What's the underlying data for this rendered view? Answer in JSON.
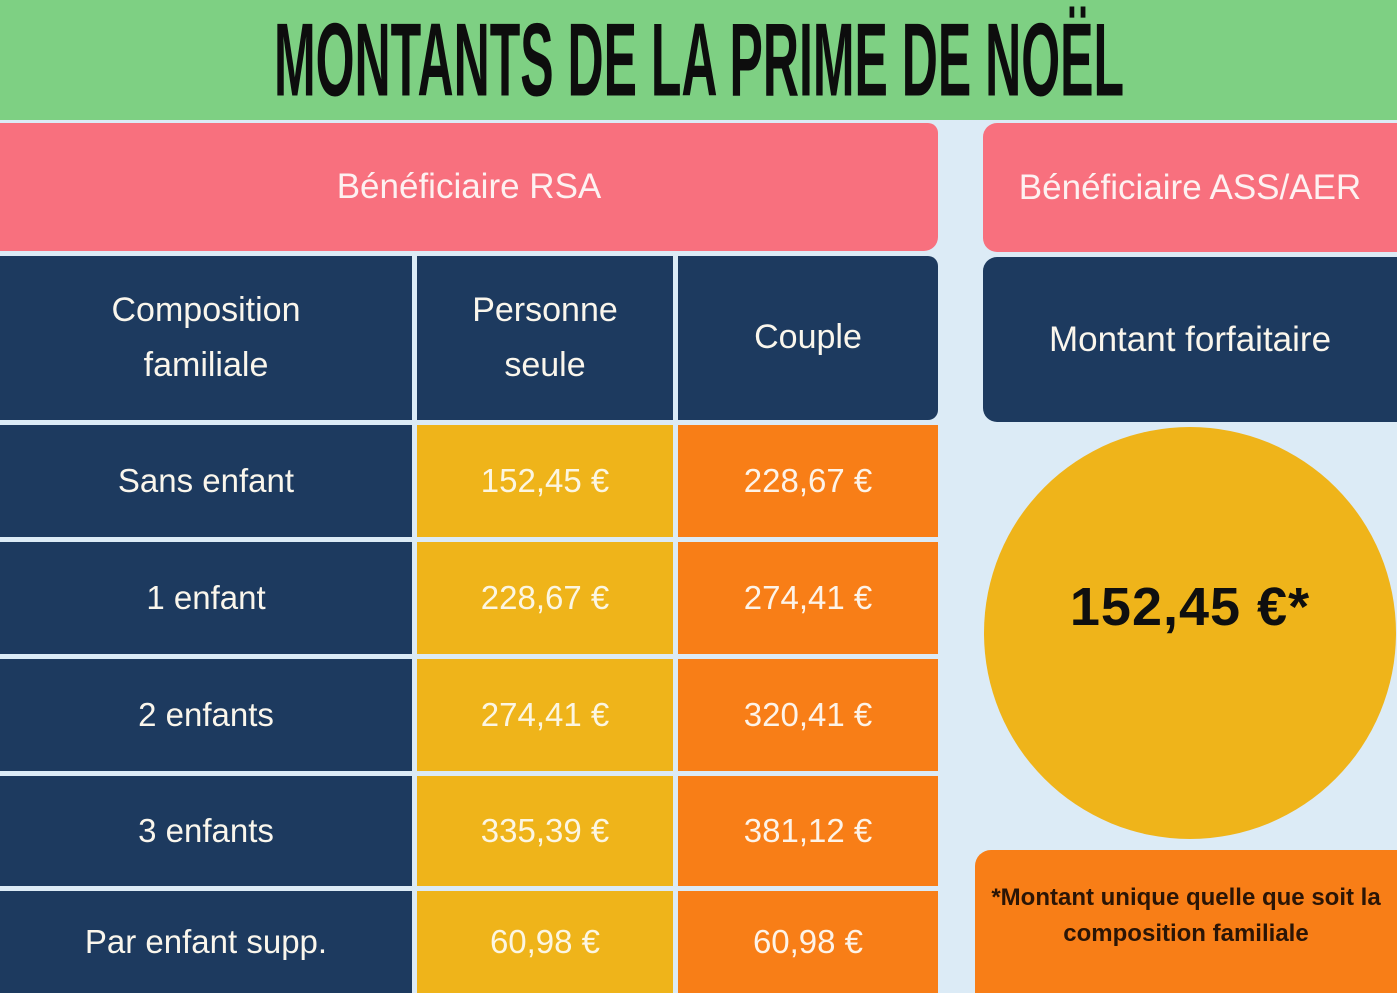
{
  "title": "MONTANTS DE LA PRIME DE NOËL",
  "colors": {
    "green_header": "#7ed083",
    "pink_banner": "#f8707e",
    "navy": "#1d3a5f",
    "yellow": "#efb41a",
    "orange": "#f87e17",
    "background_light_blue": "#dcebf6",
    "title_text": "#0d0d0d",
    "cell_text": "#faf6ec",
    "footnote_text": "#2b1506"
  },
  "rsa": {
    "header": "Bénéficiaire RSA",
    "columns": [
      "Composition familiale",
      "Personne seule",
      "Couple"
    ],
    "rows": [
      {
        "label": "Sans enfant",
        "single": "152,45 €",
        "couple": "228,67 €"
      },
      {
        "label": "1 enfant",
        "single": "228,67 €",
        "couple": "274,41 €"
      },
      {
        "label": "2 enfants",
        "single": "274,41 €",
        "couple": "320,41 €"
      },
      {
        "label": "3 enfants",
        "single": "335,39 €",
        "couple": "381,12 €"
      },
      {
        "label": "Par enfant supp.",
        "single": "60,98 €",
        "couple": "60,98 €"
      }
    ]
  },
  "ass": {
    "header": "Bénéficiaire ASS/AER",
    "subheader": "Montant forfaitaire",
    "amount": "152,45 €*",
    "footnote": "*Montant unique quelle que soit la composition familiale"
  },
  "chart_data": {
    "type": "table",
    "title": "MONTANTS DE LA PRIME DE NOËL",
    "groups": [
      {
        "name": "Bénéficiaire RSA",
        "columns": [
          "Composition familiale",
          "Personne seule",
          "Couple"
        ],
        "unit": "EUR",
        "rows": [
          [
            "Sans enfant",
            152.45,
            228.67
          ],
          [
            "1 enfant",
            228.67,
            274.41
          ],
          [
            "2 enfants",
            274.41,
            320.41
          ],
          [
            "3 enfants",
            335.39,
            381.12
          ],
          [
            "Par enfant supp.",
            60.98,
            60.98
          ]
        ]
      },
      {
        "name": "Bénéficiaire ASS/AER",
        "columns": [
          "Montant forfaitaire"
        ],
        "unit": "EUR",
        "rows": [
          [
            152.45
          ]
        ],
        "note": "*Montant unique quelle que soit la composition familiale"
      }
    ]
  }
}
